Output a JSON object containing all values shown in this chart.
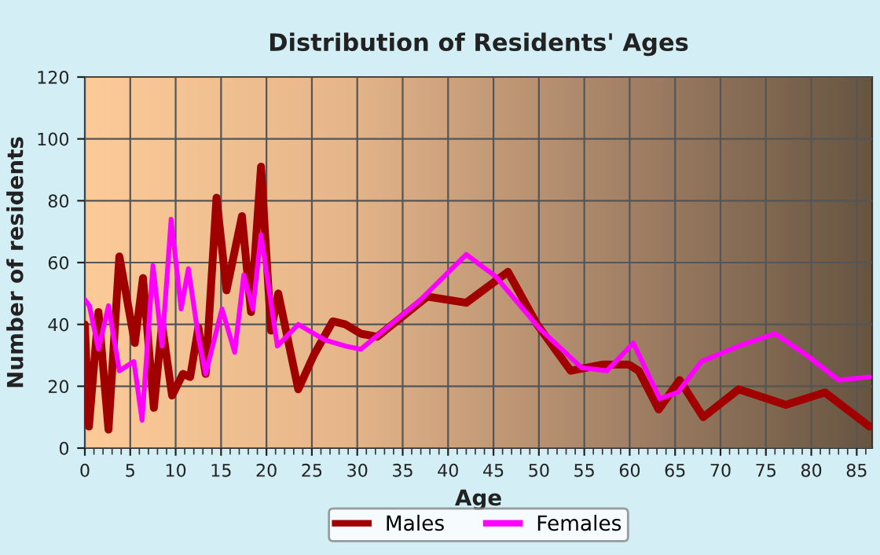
{
  "chart_data": {
    "type": "line",
    "title": "Distribution of Residents' Ages",
    "xlabel": "Age",
    "ylabel": "Number of residents",
    "xlim": [
      0,
      86.7
    ],
    "xticks": [
      0,
      5,
      10,
      15,
      20,
      25,
      30,
      35,
      40,
      45,
      50,
      55,
      60,
      65,
      70,
      75,
      80,
      85
    ],
    "ylim": [
      0,
      120
    ],
    "yticks": [
      0,
      20,
      40,
      60,
      80,
      100,
      120
    ],
    "grid": true,
    "legend": "bottom",
    "line_style": "solid",
    "marker": "none",
    "series": [
      {
        "name": "Males",
        "color": "#a00000",
        "x": [
          0,
          0.45,
          1.5,
          2.6,
          3.8,
          5.5,
          6.4,
          7.6,
          8.5,
          9.6,
          10.8,
          11.6,
          12.5,
          13.3,
          14.5,
          15.6,
          17.3,
          18.3,
          19.4,
          20.5,
          21.3,
          23.5,
          25.2,
          27.3,
          28.7,
          30.4,
          32.2,
          37.7,
          42.0,
          46.6,
          49.8,
          53.5,
          57,
          59.9,
          61.0,
          63.2,
          65.5,
          68.1,
          72.0,
          77.2,
          81.5,
          86.4
        ],
        "values": [
          40,
          7,
          44,
          6,
          62,
          34,
          55,
          13,
          40,
          17,
          24,
          23,
          39,
          24,
          81,
          51,
          75,
          44,
          91,
          38,
          50,
          19,
          30,
          41,
          40,
          37,
          36,
          49,
          47,
          57,
          40,
          25,
          27,
          27,
          25,
          12.5,
          22,
          10,
          19,
          14,
          18,
          7
        ]
      },
      {
        "name": "Females",
        "color": "#ff00ff",
        "x": [
          0,
          0.5,
          1.5,
          2.6,
          3.8,
          5.4,
          6.3,
          7.5,
          8.5,
          9.5,
          10.6,
          11.4,
          12.5,
          13.3,
          15.1,
          16.5,
          17.5,
          18.5,
          19.4,
          21.2,
          23.5,
          26.4,
          28.7,
          30.4,
          36.8,
          42.0,
          45.2,
          50.1,
          54.7,
          57.5,
          60.4,
          63.3,
          65.3,
          67.9,
          72,
          76.0,
          79.5,
          83,
          86.4
        ],
        "values": [
          48,
          46,
          32,
          46,
          25,
          28,
          9,
          59,
          33,
          74,
          45,
          58,
          36,
          24,
          45,
          31,
          56,
          45,
          69,
          33,
          40,
          35,
          33,
          32,
          47.5,
          62.6,
          55.6,
          38.6,
          26,
          25,
          34,
          16,
          18,
          28,
          33,
          37,
          30,
          22,
          23
        ]
      }
    ]
  }
}
